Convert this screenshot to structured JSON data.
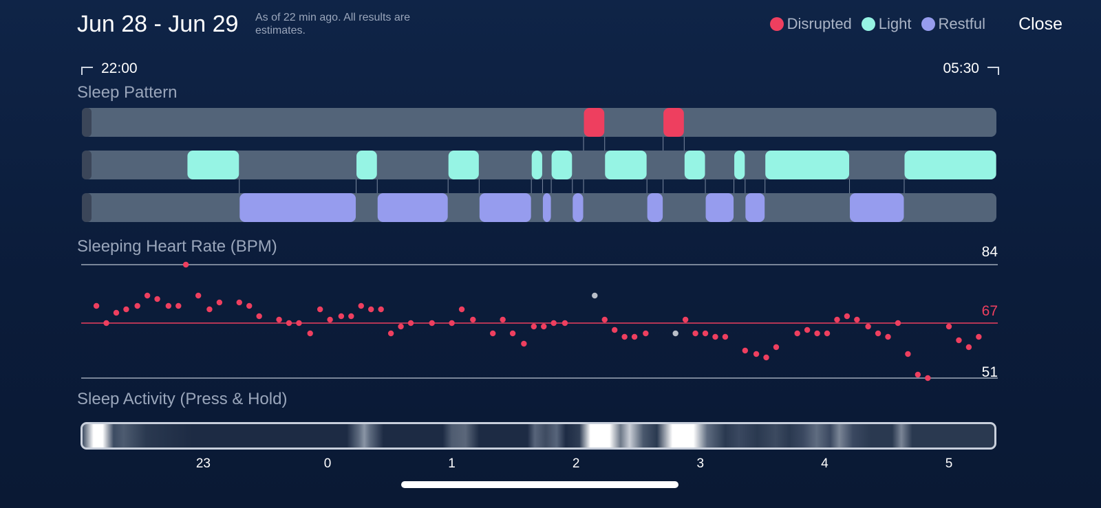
{
  "header": {
    "date_range": "Jun 28 - Jun 29",
    "as_of": "As of 22 min ago. All results are estimates.",
    "close_label": "Close"
  },
  "legend": [
    {
      "label": "Disrupted",
      "color": "#ee3f5f"
    },
    {
      "label": "Light",
      "color": "#96f4e4"
    },
    {
      "label": "Restful",
      "color": "#969cee"
    }
  ],
  "time_range": {
    "start": "22:00",
    "end": "05:30"
  },
  "sleep_pattern": {
    "title": "Sleep Pattern",
    "track_color": "#536479",
    "disrupted": [
      [
        2.06,
        2.23
      ],
      [
        2.7,
        2.87
      ]
    ],
    "light": [
      [
        -1.13,
        -0.71
      ],
      [
        0.23,
        0.4
      ],
      [
        0.97,
        1.22
      ],
      [
        1.64,
        1.73
      ],
      [
        1.8,
        1.97
      ],
      [
        2.23,
        2.57
      ],
      [
        2.87,
        3.04
      ],
      [
        3.27,
        3.36
      ],
      [
        3.52,
        4.2
      ],
      [
        4.64,
        5.5
      ]
    ],
    "restful": [
      [
        -0.71,
        0.23
      ],
      [
        0.4,
        0.97
      ],
      [
        1.22,
        1.64
      ],
      [
        1.73,
        1.8
      ],
      [
        1.97,
        2.06
      ],
      [
        2.57,
        2.7
      ],
      [
        3.04,
        3.27
      ],
      [
        3.36,
        3.52
      ],
      [
        4.2,
        4.64
      ]
    ]
  },
  "heart_rate": {
    "title": "Sleeping Heart Rate (BPM)",
    "max": "84",
    "avg": "67",
    "min": "51",
    "x_range": [
      -2,
      5.5
    ],
    "y_range": [
      51,
      84
    ],
    "points": [
      [
        -1.86,
        72
      ],
      [
        -1.78,
        67
      ],
      [
        -1.7,
        70
      ],
      [
        -1.62,
        71
      ],
      [
        -1.53,
        72
      ],
      [
        -1.45,
        75
      ],
      [
        -1.37,
        74
      ],
      [
        -1.28,
        72
      ],
      [
        -1.2,
        72
      ],
      [
        -1.04,
        75
      ],
      [
        -0.95,
        71
      ],
      [
        -0.87,
        73
      ],
      [
        -0.71,
        73
      ],
      [
        -0.63,
        72
      ],
      [
        -0.55,
        69
      ],
      [
        -0.39,
        68
      ],
      [
        -0.31,
        67
      ],
      [
        -0.23,
        67
      ],
      [
        -0.14,
        64
      ],
      [
        -0.06,
        71
      ],
      [
        0.02,
        68
      ],
      [
        0.11,
        69
      ],
      [
        0.19,
        69
      ],
      [
        0.27,
        72
      ],
      [
        0.35,
        71
      ],
      [
        0.43,
        71
      ],
      [
        0.51,
        64
      ],
      [
        0.59,
        66
      ],
      [
        0.67,
        67
      ],
      [
        0.84,
        67
      ],
      [
        1.0,
        67
      ],
      [
        1.08,
        71
      ],
      [
        1.17,
        68
      ],
      [
        1.33,
        64
      ],
      [
        1.41,
        68
      ],
      [
        1.49,
        64
      ],
      [
        1.58,
        61
      ],
      [
        1.66,
        66
      ],
      [
        1.74,
        66
      ],
      [
        1.82,
        67
      ],
      [
        1.91,
        67
      ],
      [
        2.23,
        68
      ],
      [
        2.31,
        65
      ],
      [
        2.39,
        63
      ],
      [
        2.47,
        63
      ],
      [
        2.56,
        64
      ],
      [
        2.88,
        68
      ],
      [
        2.96,
        64
      ],
      [
        3.04,
        64
      ],
      [
        3.12,
        63
      ],
      [
        3.2,
        63
      ],
      [
        3.36,
        59
      ],
      [
        3.45,
        58
      ],
      [
        3.53,
        57
      ],
      [
        3.61,
        60
      ],
      [
        3.78,
        64
      ],
      [
        3.86,
        65
      ],
      [
        3.94,
        64
      ],
      [
        4.02,
        64
      ],
      [
        4.1,
        68
      ],
      [
        4.18,
        69
      ],
      [
        4.26,
        68
      ],
      [
        4.35,
        66
      ],
      [
        4.43,
        64
      ],
      [
        4.51,
        63
      ],
      [
        4.59,
        67
      ],
      [
        4.67,
        58
      ],
      [
        4.75,
        52
      ],
      [
        4.83,
        51
      ],
      [
        5.0,
        66
      ],
      [
        5.08,
        62
      ],
      [
        5.16,
        60
      ],
      [
        5.24,
        63
      ]
    ],
    "outlier": [
      -1.14,
      84
    ],
    "gray_points": [
      [
        2.15,
        75
      ],
      [
        2.8,
        64
      ]
    ]
  },
  "activity": {
    "title": "Sleep Activity (Press & Hold)",
    "ticks": [
      "23",
      "0",
      "1",
      "2",
      "3",
      "4",
      "5"
    ]
  }
}
